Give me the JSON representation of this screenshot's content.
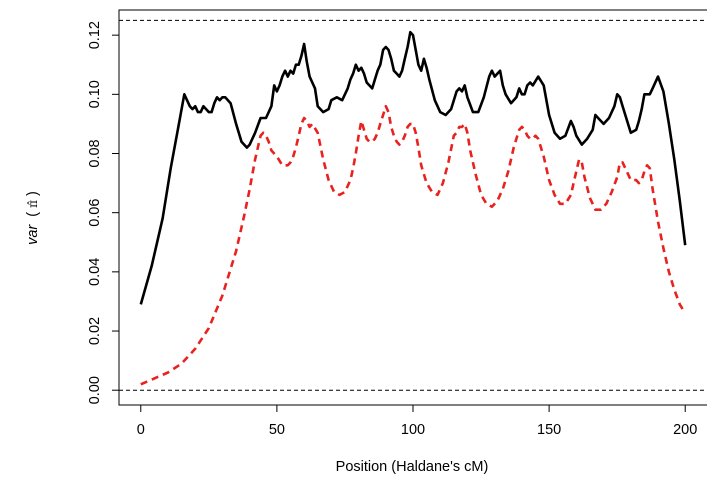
{
  "chart_data": {
    "type": "line",
    "title": "",
    "xlabel": "Position (Haldane's cM)",
    "ylabel_var": "var",
    "ylabel_open": "(",
    "ylabel_symbol": "π̂",
    "ylabel_close": ")",
    "xlim": [
      -8,
      208
    ],
    "ylim": [
      -0.005,
      0.1285
    ],
    "x_ticks": [
      0,
      50,
      100,
      150,
      200
    ],
    "y_ticks": [
      0.0,
      0.02,
      0.04,
      0.06,
      0.08,
      0.1,
      0.12
    ],
    "x_tick_labels": [
      "0",
      "50",
      "100",
      "150",
      "200"
    ],
    "y_tick_labels": [
      "0.00",
      "0.02",
      "0.04",
      "0.06",
      "0.08",
      "0.10",
      "0.12"
    ],
    "hlines": [
      0.0,
      0.125
    ],
    "grid": false,
    "series": [
      {
        "color": "#000000",
        "style": "solid",
        "x": [
          0,
          4,
          8,
          11,
          14,
          16,
          18,
          19,
          20,
          21,
          22,
          23,
          24,
          25,
          26,
          27,
          28,
          29,
          30,
          31,
          33,
          35,
          37,
          39,
          40,
          42,
          44,
          46,
          48,
          49,
          50,
          51,
          52,
          53,
          54,
          55,
          56,
          57,
          58,
          59,
          60,
          61,
          62,
          63,
          64,
          65,
          67,
          69,
          70,
          72,
          74,
          76,
          77,
          78,
          79,
          80,
          81,
          82,
          83,
          85,
          86,
          87,
          88,
          89,
          90,
          91,
          92,
          93,
          94,
          95,
          96,
          97,
          98,
          99,
          100,
          101,
          102,
          103,
          104,
          105,
          106,
          108,
          110,
          112,
          114,
          116,
          117,
          118,
          119,
          120,
          122,
          124,
          126,
          128,
          129,
          130,
          131,
          132,
          133,
          134,
          136,
          138,
          139,
          140,
          141,
          142,
          143,
          144,
          146,
          148,
          150,
          152,
          153,
          154,
          156,
          158,
          159,
          160,
          162,
          164,
          166,
          167,
          168,
          170,
          172,
          174,
          175,
          176,
          177,
          178,
          180,
          182,
          183,
          184,
          185,
          186,
          187,
          188,
          190,
          192,
          194,
          196,
          198,
          200
        ],
        "y": [
          0.029,
          0.042,
          0.058,
          0.075,
          0.09,
          0.1,
          0.096,
          0.095,
          0.096,
          0.094,
          0.094,
          0.096,
          0.095,
          0.094,
          0.094,
          0.097,
          0.099,
          0.098,
          0.099,
          0.099,
          0.097,
          0.09,
          0.084,
          0.082,
          0.083,
          0.087,
          0.092,
          0.092,
          0.096,
          0.103,
          0.101,
          0.103,
          0.106,
          0.108,
          0.106,
          0.108,
          0.107,
          0.11,
          0.11,
          0.113,
          0.117,
          0.111,
          0.106,
          0.104,
          0.102,
          0.096,
          0.094,
          0.095,
          0.098,
          0.099,
          0.098,
          0.102,
          0.105,
          0.107,
          0.11,
          0.108,
          0.109,
          0.107,
          0.104,
          0.102,
          0.105,
          0.108,
          0.11,
          0.115,
          0.116,
          0.115,
          0.112,
          0.108,
          0.107,
          0.106,
          0.108,
          0.112,
          0.116,
          0.121,
          0.12,
          0.115,
          0.11,
          0.108,
          0.112,
          0.109,
          0.105,
          0.098,
          0.094,
          0.093,
          0.095,
          0.101,
          0.102,
          0.101,
          0.103,
          0.099,
          0.094,
          0.094,
          0.099,
          0.106,
          0.108,
          0.106,
          0.107,
          0.108,
          0.103,
          0.1,
          0.097,
          0.099,
          0.102,
          0.1,
          0.1,
          0.103,
          0.104,
          0.103,
          0.106,
          0.103,
          0.093,
          0.087,
          0.086,
          0.085,
          0.086,
          0.091,
          0.089,
          0.086,
          0.083,
          0.085,
          0.088,
          0.093,
          0.092,
          0.09,
          0.092,
          0.096,
          0.1,
          0.099,
          0.096,
          0.093,
          0.087,
          0.088,
          0.091,
          0.095,
          0.1,
          0.1,
          0.1,
          0.102,
          0.106,
          0.101,
          0.09,
          0.078,
          0.064,
          0.049
        ]
      },
      {
        "color": "#e8221e",
        "style": "dashed",
        "x": [
          0,
          5,
          10,
          15,
          20,
          25,
          30,
          35,
          38,
          40,
          42,
          44,
          45,
          46,
          47,
          48,
          50,
          52,
          53,
          54,
          55,
          56,
          57,
          58,
          59,
          60,
          61,
          62,
          63,
          65,
          67,
          69,
          71,
          73,
          75,
          77,
          78,
          79,
          80,
          81,
          82,
          83,
          84,
          85,
          86,
          87,
          88,
          89,
          90,
          91,
          92,
          93,
          94,
          95,
          96,
          97,
          98,
          99,
          100,
          101,
          102,
          103,
          105,
          107,
          109,
          111,
          113,
          115,
          116,
          117,
          118,
          119,
          120,
          121,
          123,
          125,
          127,
          129,
          131,
          133,
          135,
          137,
          138,
          139,
          140,
          141,
          142,
          143,
          144,
          145,
          146,
          148,
          150,
          152,
          154,
          156,
          158,
          159,
          160,
          161,
          162,
          163,
          165,
          167,
          169,
          171,
          173,
          175,
          176,
          177,
          178,
          179,
          180,
          181,
          182,
          183,
          184,
          185,
          186,
          187,
          188,
          190,
          192,
          194,
          196,
          198,
          200
        ],
        "y": [
          0.002,
          0.004,
          0.006,
          0.009,
          0.014,
          0.021,
          0.032,
          0.047,
          0.059,
          0.068,
          0.078,
          0.086,
          0.087,
          0.086,
          0.084,
          0.081,
          0.079,
          0.076,
          0.076,
          0.076,
          0.077,
          0.079,
          0.082,
          0.086,
          0.09,
          0.092,
          0.091,
          0.089,
          0.09,
          0.087,
          0.078,
          0.071,
          0.067,
          0.066,
          0.067,
          0.071,
          0.075,
          0.08,
          0.086,
          0.091,
          0.088,
          0.085,
          0.084,
          0.084,
          0.085,
          0.087,
          0.09,
          0.093,
          0.096,
          0.094,
          0.089,
          0.086,
          0.084,
          0.083,
          0.084,
          0.086,
          0.089,
          0.09,
          0.09,
          0.087,
          0.082,
          0.076,
          0.07,
          0.067,
          0.066,
          0.07,
          0.077,
          0.086,
          0.087,
          0.089,
          0.089,
          0.09,
          0.087,
          0.081,
          0.073,
          0.066,
          0.063,
          0.062,
          0.064,
          0.068,
          0.074,
          0.082,
          0.085,
          0.088,
          0.089,
          0.088,
          0.086,
          0.085,
          0.085,
          0.086,
          0.085,
          0.079,
          0.071,
          0.066,
          0.063,
          0.063,
          0.066,
          0.07,
          0.074,
          0.078,
          0.077,
          0.072,
          0.065,
          0.061,
          0.061,
          0.063,
          0.067,
          0.072,
          0.077,
          0.077,
          0.075,
          0.073,
          0.071,
          0.071,
          0.071,
          0.07,
          0.071,
          0.074,
          0.076,
          0.075,
          0.068,
          0.057,
          0.048,
          0.04,
          0.034,
          0.029,
          0.026
        ]
      }
    ]
  }
}
